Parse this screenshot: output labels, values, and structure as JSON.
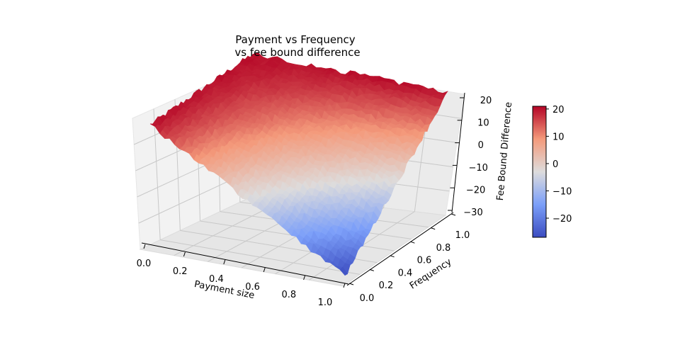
{
  "chart_data": {
    "type": "surface3d",
    "title_lines": [
      "Payment vs Frequency",
      "vs fee bound difference"
    ],
    "xlabel": "Payment size",
    "ylabel": "Frequency",
    "zlabel": "Fee Bound Difference",
    "x_range": [
      0.0,
      1.0
    ],
    "y_range": [
      0.0,
      1.0
    ],
    "zlim": [
      -30,
      20
    ],
    "x_ticks": [
      "0.0",
      "0.2",
      "0.4",
      "0.6",
      "0.8",
      "1.0"
    ],
    "y_ticks": [
      "0.0",
      "0.2",
      "0.4",
      "0.6",
      "0.8",
      "1.0"
    ],
    "z_ticks": [
      "20",
      "10",
      "0",
      "−10",
      "−20",
      "−30"
    ],
    "corner_values": {
      "payment_0_frequency_0": 20,
      "payment_0_frequency_1": 20,
      "payment_1_frequency_1": 20,
      "payment_1_frequency_0": -27
    },
    "colormap": "coolwarm",
    "colorbar": {
      "range": [
        -27,
        21
      ],
      "ticks": [
        "20",
        "10",
        "0",
        "−10",
        "−20"
      ],
      "low_color": "#3b4cc0",
      "mid_color": "#dddddd",
      "high_color": "#b40426"
    },
    "grid": true
  }
}
